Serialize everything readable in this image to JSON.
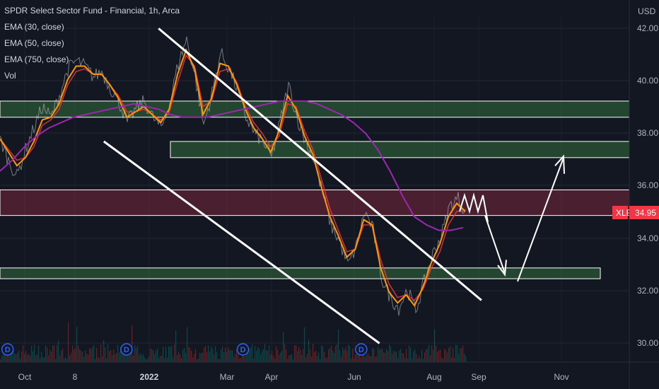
{
  "chart_data": {
    "type": "line",
    "title": "SPDR Select Sector Fund - Financial, 1h, Arca",
    "symbol": "XLF",
    "currency": "USD",
    "ylim": [
      29.5,
      42.3
    ],
    "y_ticks": [
      "42.00",
      "40.00",
      "38.00",
      "36.00",
      "34.00",
      "32.00",
      "30.00"
    ],
    "x_ticks": [
      {
        "label": "Oct",
        "bold": false
      },
      {
        "label": "8",
        "bold": false
      },
      {
        "label": "2022",
        "bold": true
      },
      {
        "label": "Mar",
        "bold": false
      },
      {
        "label": "Apr",
        "bold": false
      },
      {
        "label": "Jun",
        "bold": false
      },
      {
        "label": "Aug",
        "bold": false
      },
      {
        "label": "Sep",
        "bold": false
      },
      {
        "label": "Nov",
        "bold": false
      }
    ],
    "last_price": "34.95",
    "indicators": [
      "EMA (30, close)",
      "EMA (50, close)",
      "EMA (750, close)",
      "Vol"
    ],
    "series": [
      {
        "role": "price",
        "color": "#ffffff",
        "values": [
          37.8,
          37.0,
          36.4,
          37.4,
          38.2,
          39.0,
          38.6,
          39.4,
          40.4,
          40.7,
          40.5,
          40.1,
          40.3,
          39.7,
          39.2,
          38.4,
          38.9,
          39.2,
          38.6,
          38.2,
          39.1,
          40.6,
          41.5,
          40.1,
          38.3,
          39.5,
          41.0,
          40.4,
          39.6,
          38.6,
          38.0,
          37.7,
          37.1,
          38.4,
          39.8,
          38.6,
          37.7,
          37.0,
          35.8,
          34.6,
          34.0,
          33.1,
          33.8,
          35.1,
          34.4,
          32.6,
          31.9,
          31.5,
          32.2,
          31.4,
          32.5,
          33.5,
          34.2,
          35.3,
          35.6,
          35.0
        ]
      },
      {
        "name": "EMA (30, close)",
        "color": "#ff9800",
        "values": [
          37.8,
          37.3,
          36.8,
          37.1,
          37.7,
          38.5,
          38.6,
          39.1,
          40.0,
          40.5,
          40.5,
          40.2,
          40.2,
          39.8,
          39.3,
          38.6,
          38.8,
          39.0,
          38.7,
          38.4,
          38.9,
          40.2,
          41.1,
          40.4,
          38.7,
          39.3,
          40.6,
          40.5,
          39.8,
          38.9,
          38.2,
          37.8,
          37.3,
          38.1,
          39.4,
          38.9,
          37.9,
          37.2,
          36.0,
          34.9,
          34.2,
          33.4,
          33.7,
          34.8,
          34.6,
          33.0,
          32.1,
          31.7,
          32.0,
          31.6,
          32.3,
          33.2,
          33.9,
          34.9,
          35.4,
          35.1
        ]
      },
      {
        "name": "EMA (50, close)",
        "color": "#f23645",
        "values": [
          37.8,
          37.4,
          37.0,
          37.1,
          37.5,
          38.3,
          38.5,
          38.9,
          39.8,
          40.3,
          40.4,
          40.2,
          40.2,
          39.8,
          39.4,
          38.8,
          38.8,
          38.9,
          38.7,
          38.5,
          38.8,
          39.9,
          40.9,
          40.5,
          39.0,
          39.2,
          40.3,
          40.4,
          39.9,
          39.0,
          38.4,
          38.0,
          37.5,
          37.9,
          39.1,
          39.0,
          38.1,
          37.4,
          36.3,
          35.2,
          34.4,
          33.6,
          33.7,
          34.6,
          34.6,
          33.3,
          32.4,
          31.9,
          32.0,
          31.8,
          32.2,
          33.0,
          33.6,
          34.6,
          35.1,
          35.1
        ]
      },
      {
        "name": "EMA (750, close)",
        "color": "#9c27b0",
        "values": [
          36.6,
          37.0,
          37.5,
          37.9,
          38.2,
          38.4,
          38.6,
          38.7,
          38.8,
          38.9,
          39.0,
          39.1,
          39.0,
          38.9,
          38.7,
          38.6,
          38.6,
          38.6,
          38.7,
          38.8,
          38.9,
          39.0,
          39.1,
          39.2,
          39.2,
          39.2,
          39.1,
          38.9,
          38.7,
          38.4,
          38.0,
          37.4,
          36.6,
          35.7,
          34.9,
          34.6,
          34.4,
          34.4,
          34.5
        ]
      }
    ],
    "zones": [
      {
        "from": 38.6,
        "to": 39.2,
        "kind": "support-resistance",
        "color": "#4caf50"
      },
      {
        "from": 37.1,
        "to": 37.7,
        "kind": "support-resistance",
        "color": "#4caf50"
      },
      {
        "from": 34.95,
        "to": 35.9,
        "kind": "resistance",
        "color": "#b2324a"
      },
      {
        "from": 32.6,
        "to": 33.0,
        "kind": "support",
        "color": "#4caf50"
      }
    ],
    "trendlines": [
      {
        "from": [
          0.252,
          41.9
        ],
        "to": [
          0.765,
          31.8
        ],
        "color": "#ffffff"
      },
      {
        "from": [
          0.165,
          37.7
        ],
        "to": [
          0.603,
          30.2
        ],
        "color": "#ffffff"
      }
    ],
    "projection_color": "#ffffff",
    "dividend_markers": [
      0.012,
      0.201,
      0.386,
      0.574
    ],
    "volume_color": "#26a69a"
  }
}
